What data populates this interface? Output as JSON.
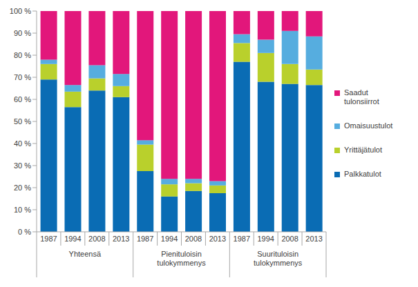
{
  "chart_data": {
    "type": "bar",
    "stacked": true,
    "grid": false,
    "legend": "right",
    "categories": [
      "1987",
      "1994",
      "2008",
      "2013",
      "1987",
      "1994",
      "2008",
      "2013",
      "1987",
      "1994",
      "2008",
      "2013"
    ],
    "groups": [
      "Yhteensä",
      "Pienituloisin tulokymmenys",
      "Suurituloisin tulokymmenys"
    ],
    "series": [
      {
        "name": "Palkkatulot",
        "color": "#0a6cb4",
        "values": [
          69,
          56.5,
          64,
          61,
          27.5,
          16,
          18.5,
          17.5,
          77,
          68,
          67,
          66.5
        ]
      },
      {
        "name": "Yrittäjätulot",
        "color": "#b9d02c",
        "values": [
          7,
          7,
          5.5,
          5,
          12,
          5.5,
          3.5,
          3.5,
          8.5,
          13,
          9,
          7
        ]
      },
      {
        "name": "Omaisuustulot",
        "color": "#56addf",
        "values": [
          2,
          3,
          6,
          5.5,
          2,
          2.5,
          2,
          2,
          4,
          6,
          15,
          15
        ]
      },
      {
        "name": "Saadut tulonsiirrot",
        "color": "#e2177b",
        "values": [
          22,
          33.5,
          24.5,
          28.5,
          58.5,
          76,
          76,
          77,
          10.5,
          13,
          9,
          11.5
        ]
      }
    ],
    "ylim": [
      0,
      100
    ],
    "yticks": [
      {
        "value": 0,
        "label": "0 %"
      },
      {
        "value": 10,
        "label": "10 %"
      },
      {
        "value": 20,
        "label": "20 %"
      },
      {
        "value": 30,
        "label": "30 %"
      },
      {
        "value": 40,
        "label": "40 %"
      },
      {
        "value": 50,
        "label": "50 %"
      },
      {
        "value": 60,
        "label": "60 %"
      },
      {
        "value": 70,
        "label": "70 %"
      },
      {
        "value": 80,
        "label": "80 %"
      },
      {
        "value": 90,
        "label": "90 %"
      },
      {
        "value": 100,
        "label": "100 %"
      }
    ]
  }
}
